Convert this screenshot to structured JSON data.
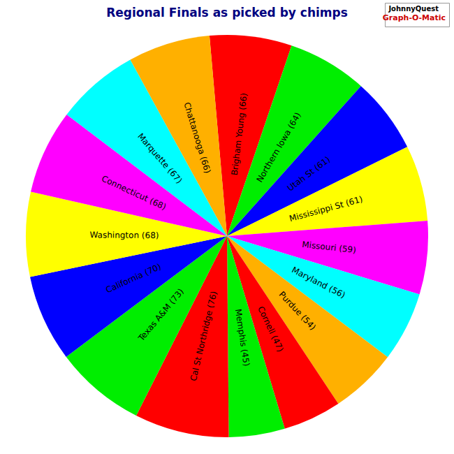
{
  "chart_data": {
    "type": "pie",
    "title": "Regional Finals as picked by chimps",
    "annotations": [
      "JohnnyQuest",
      "Graph-O-Matic"
    ],
    "categories": [
      "Brigham Young (66)",
      "Northern Iowa (64)",
      "Utah St (61)",
      "Mississippi St (61)",
      "Missouri (59)",
      "Maryland (56)",
      "Purdue (54)",
      "Cornell (47)",
      "Memphis (45)",
      "Cal St Northridge (76)",
      "Texas A&M (73)",
      "California (70)",
      "Washington (68)",
      "Connecticut (68)",
      "Marquette (67)",
      "Chattanooga (66)"
    ],
    "values": [
      66,
      64,
      61,
      61,
      59,
      56,
      54,
      47,
      45,
      76,
      73,
      70,
      68,
      68,
      67,
      66
    ],
    "colors": [
      "#ff0000",
      "#00ee00",
      "#0000ff",
      "#ffff00",
      "#ff00ff",
      "#00ffff",
      "#ffb000",
      "#ff0000",
      "#00ee00",
      "#ff0000",
      "#00ee00",
      "#0000ff",
      "#ffff00",
      "#ff00ff",
      "#00ffff",
      "#ffb000"
    ],
    "legend": false
  }
}
